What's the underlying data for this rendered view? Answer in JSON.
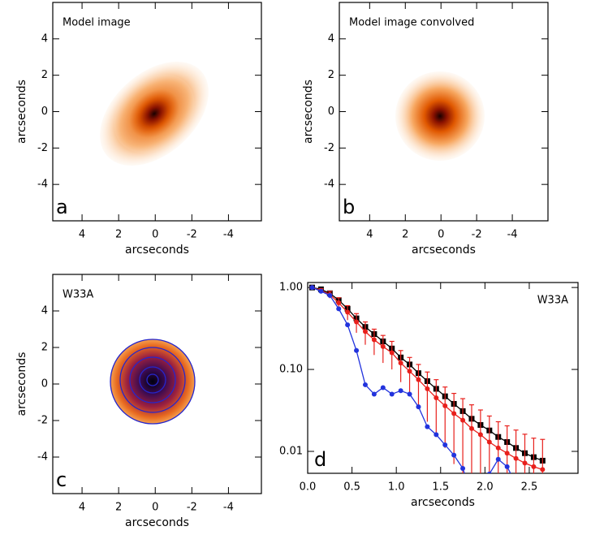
{
  "chart_data": [
    {
      "type": "image",
      "title": "Model image",
      "panel_label": "a",
      "xlabel": "arcseconds",
      "ylabel": "arcseconds",
      "xlim": [
        5.6,
        -5.8
      ],
      "ylim": [
        -6,
        6
      ],
      "xticks": [
        4,
        2,
        0,
        -2,
        -4
      ],
      "yticks": [
        -4,
        -2,
        0,
        2,
        4
      ]
    },
    {
      "type": "image",
      "title": "Model image convolved",
      "panel_label": "b",
      "xlabel": "arcseconds",
      "ylabel": "arcseconds",
      "xlim": [
        5.7,
        -6
      ],
      "ylim": [
        -6,
        6
      ],
      "xticks": [
        4,
        2,
        0,
        -2,
        -4
      ],
      "yticks": [
        -4,
        -2,
        0,
        2,
        4
      ]
    },
    {
      "type": "image",
      "title": "W33A",
      "panel_label": "c",
      "xlabel": "arcseconds",
      "ylabel": "arcseconds",
      "xlim": [
        5.6,
        -5.8
      ],
      "ylim": [
        -6,
        6
      ],
      "xticks": [
        4,
        2,
        0,
        -2,
        -4
      ],
      "yticks": [
        -4,
        -2,
        0,
        2,
        4
      ]
    },
    {
      "type": "line",
      "title": "W33A",
      "panel_label": "d",
      "xlabel": "arcseconds",
      "log_y": true,
      "xlim": [
        0,
        3.05
      ],
      "ylim": [
        0.0054,
        1.15
      ],
      "xticks": [
        {
          "value": 0,
          "label": "0.0"
        },
        {
          "value": 0.5,
          "label": "0.5"
        },
        {
          "value": 1,
          "label": "1.0"
        },
        {
          "value": 1.5,
          "label": "1.5"
        },
        {
          "value": 2,
          "label": "2.0"
        },
        {
          "value": 2.5,
          "label": "2.5"
        }
      ],
      "yticks": [
        {
          "value": 1,
          "label": "1.00"
        },
        {
          "value": 0.1,
          "label": "0.10"
        },
        {
          "value": 0.01,
          "label": "0.01"
        }
      ],
      "x": [
        0.05,
        0.15,
        0.25,
        0.35,
        0.45,
        0.55,
        0.65,
        0.75,
        0.85,
        0.95,
        1.05,
        1.15,
        1.25,
        1.35,
        1.45,
        1.55,
        1.65,
        1.75,
        1.85,
        1.95,
        2.05,
        2.15,
        2.25,
        2.35,
        2.45,
        2.55,
        2.65
      ],
      "series": [
        {
          "color": "#000000",
          "marker": "square",
          "values": [
            1.0,
            0.95,
            0.85,
            0.7,
            0.55,
            0.42,
            0.33,
            0.27,
            0.22,
            0.18,
            0.14,
            0.115,
            0.09,
            0.072,
            0.058,
            0.047,
            0.038,
            0.031,
            0.025,
            0.021,
            0.018,
            0.015,
            0.013,
            0.011,
            0.0095,
            0.0085,
            0.0077
          ]
        },
        {
          "color": "#e8201c",
          "marker": "circle",
          "values": [
            1.0,
            0.92,
            0.82,
            0.65,
            0.5,
            0.38,
            0.29,
            0.23,
            0.19,
            0.16,
            0.12,
            0.095,
            0.075,
            0.058,
            0.045,
            0.036,
            0.029,
            0.024,
            0.019,
            0.016,
            0.013,
            0.011,
            0.0095,
            0.0082,
            0.0072,
            0.0065,
            0.006
          ],
          "errors": [
            0,
            0.05,
            0.08,
            0.1,
            0.1,
            0.1,
            0.09,
            0.08,
            0.07,
            0.06,
            0.05,
            0.045,
            0.04,
            0.035,
            0.03,
            0.025,
            0.022,
            0.02,
            0.018,
            0.016,
            0.014,
            0.012,
            0.011,
            0.01,
            0.009,
            0.008,
            0.008
          ]
        },
        {
          "color": "#2233dd",
          "marker": "circle",
          "values": [
            1.0,
            0.9,
            0.8,
            0.55,
            0.35,
            0.17,
            0.065,
            0.05,
            0.06,
            0.05,
            0.055,
            0.05,
            0.035,
            0.02,
            0.016,
            0.012,
            0.009,
            0.0062,
            0.003,
            null,
            0.0053,
            0.008,
            0.0065,
            0.004,
            null,
            null,
            null
          ]
        }
      ]
    }
  ]
}
